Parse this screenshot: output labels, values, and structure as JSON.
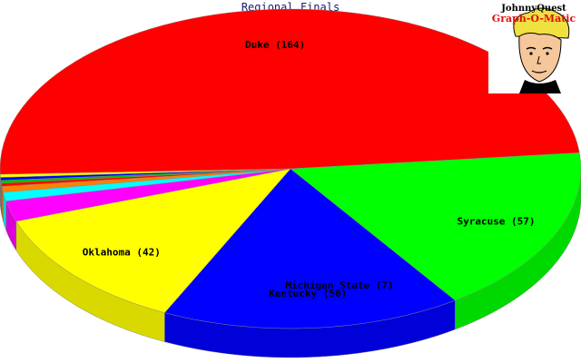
{
  "chart_data": {
    "type": "pie",
    "title": "Regional Finals",
    "slices": [
      {
        "name": "Duke",
        "value": 164,
        "color": "#ff0000",
        "label": "Duke (164)"
      },
      {
        "name": "Syracuse",
        "value": 57,
        "color": "#00ff00",
        "label": "Syracuse (57)"
      },
      {
        "name": "Kentucky",
        "value": 56,
        "color": "#0000ff",
        "label": "Kentucky (56)"
      },
      {
        "name": "Oklahoma",
        "value": 42,
        "color": "#ffff00",
        "label": "Oklahoma (42)"
      },
      {
        "name": "",
        "value": 7,
        "color": "#ff00ff",
        "label": ""
      },
      {
        "name": "",
        "value": 3,
        "color": "#00ffff",
        "label": ""
      },
      {
        "name": "",
        "value": 2,
        "color": "#ff8000",
        "label": ""
      },
      {
        "name": "",
        "value": 1,
        "color": "#ff0000",
        "label": ""
      },
      {
        "name": "",
        "value": 1,
        "color": "#00c000",
        "label": ""
      },
      {
        "name": "",
        "value": 1,
        "color": "#0000ff",
        "label": ""
      },
      {
        "name": "",
        "value": 1,
        "color": "#ffff00",
        "label": ""
      }
    ],
    "annotations": [
      {
        "text": "Michigan State (7)"
      }
    ],
    "legend": "none",
    "style": "3d-pie"
  },
  "logo": {
    "line1": "JohnnyQuest",
    "line2": "Graph-O-Matic"
  }
}
